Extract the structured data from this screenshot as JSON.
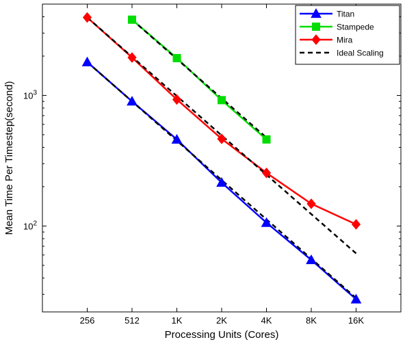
{
  "chart_data": {
    "type": "line",
    "xlabel": "Processing Units (Cores)",
    "ylabel": "Mean Time Per Timestep(second)",
    "x_scale": "log2",
    "y_scale": "log10",
    "categories": [
      "256",
      "512",
      "1K",
      "2K",
      "4K",
      "8K",
      "16K"
    ],
    "x": [
      256,
      512,
      1024,
      2048,
      4096,
      8192,
      16384
    ],
    "xlim": [
      128,
      32768
    ],
    "ylim": [
      22,
      5000
    ],
    "yticks": [
      {
        "value": 100,
        "base": "10",
        "exp": "2"
      },
      {
        "value": 1000,
        "base": "10",
        "exp": "3"
      }
    ],
    "grid": false,
    "legend_position": "top-right",
    "series": [
      {
        "name": "Titan",
        "color": "#0000ff",
        "marker": "triangle",
        "x": [
          256,
          512,
          1024,
          2048,
          4096,
          8192,
          16384
        ],
        "values": [
          1800,
          900,
          460,
          215,
          106,
          55,
          27.5
        ]
      },
      {
        "name": "Stampede",
        "color": "#00dd00",
        "marker": "square",
        "x": [
          512,
          1024,
          2048,
          4096
        ],
        "values": [
          3800,
          1930,
          920,
          460
        ]
      },
      {
        "name": "Mira",
        "color": "#ff0000",
        "marker": "diamond",
        "x": [
          256,
          512,
          1024,
          2048,
          4096,
          8192,
          16384
        ],
        "values": [
          3950,
          1950,
          930,
          465,
          255,
          148,
          103
        ]
      },
      {
        "name": "Ideal Scaling",
        "color": "#000000",
        "marker": "none",
        "dashed": true,
        "lines": [
          {
            "x": [
              512,
              4096
            ],
            "values": [
              3800,
              475
            ]
          },
          {
            "x": [
              256,
              16384
            ],
            "values": [
              3950,
              61.7
            ]
          },
          {
            "x": [
              256,
              16384
            ],
            "values": [
              1800,
              28.1
            ]
          }
        ]
      }
    ]
  }
}
